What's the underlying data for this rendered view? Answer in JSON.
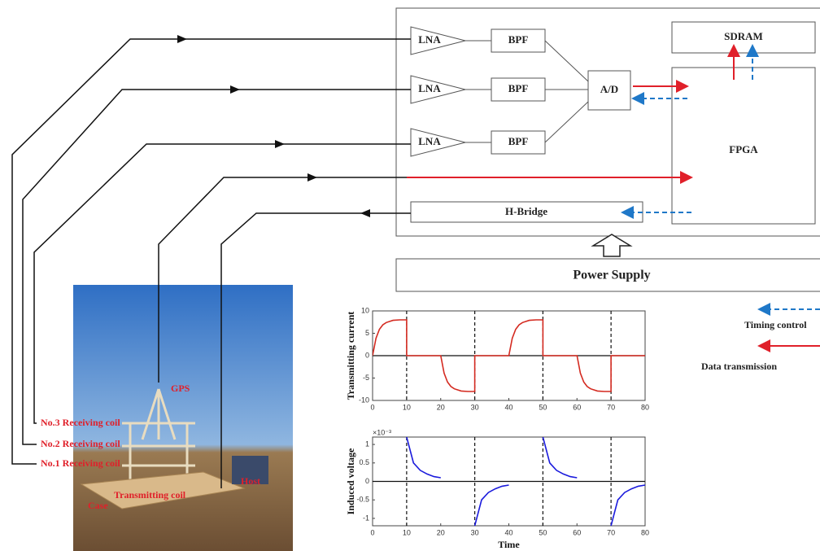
{
  "blocks": {
    "lna": [
      "LNA",
      "LNA",
      "LNA"
    ],
    "bpf": [
      "BPF",
      "BPF",
      "BPF"
    ],
    "adc": "A/D",
    "sdram": "SDRAM",
    "fpga": "FPGA",
    "h_bridge": "H-Bridge",
    "power_supply": "Power Supply"
  },
  "legend": {
    "timing": "Timing control",
    "data": "Data transmission"
  },
  "photo_labels": {
    "gps": "GPS",
    "rx3": "No.3 Receiving coil",
    "rx2": "No.2 Receiving coil",
    "rx1": "No.1 Receiving coil",
    "tx": "Transmitting coil",
    "host": "Host",
    "case": "Case"
  },
  "chart_data": [
    {
      "type": "line",
      "y_label": "Transmitting current",
      "x": [
        0,
        1,
        2,
        3,
        4,
        6,
        8,
        10,
        10,
        20,
        21,
        22,
        23,
        24,
        26,
        28,
        30,
        30,
        40,
        41,
        42,
        43,
        44,
        46,
        48,
        50,
        50,
        60,
        61,
        62,
        63,
        64,
        66,
        68,
        70,
        70,
        80
      ],
      "series": [
        {
          "color": "#d42a20",
          "values": [
            0,
            3.9,
            5.9,
            6.9,
            7.4,
            7.9,
            8,
            8,
            0,
            0,
            -3.9,
            -5.9,
            -6.9,
            -7.4,
            -7.9,
            -8,
            -8,
            0,
            0,
            3.9,
            5.9,
            6.9,
            7.4,
            7.9,
            8,
            8,
            0,
            0,
            -3.9,
            -5.9,
            -6.9,
            -7.4,
            -7.9,
            -8,
            -8,
            0,
            0
          ]
        }
      ],
      "xlim": [
        0,
        80
      ],
      "xticks": [
        0,
        10,
        20,
        30,
        40,
        50,
        60,
        70,
        80
      ],
      "ylim": [
        -10,
        10
      ],
      "yticks": [
        -10,
        -5,
        0,
        5,
        10
      ],
      "vlines": [
        10,
        30,
        50,
        70
      ]
    },
    {
      "type": "line",
      "y_label": "Induced voltage",
      "x_label": "Time",
      "multiplier": "×10⁻³",
      "x": [
        10,
        12,
        14,
        16,
        18,
        20,
        25,
        30,
        32,
        34,
        36,
        38,
        40,
        45,
        50,
        52,
        54,
        56,
        58,
        60,
        65,
        70,
        72,
        74,
        76,
        78,
        80
      ],
      "series": [
        {
          "color": "#1a1adc",
          "values": [
            1.2,
            0.5,
            0.3,
            0.2,
            0.13,
            0.1,
            null,
            -1.2,
            -0.5,
            -0.3,
            -0.2,
            -0.13,
            -0.1,
            null,
            1.2,
            0.5,
            0.3,
            0.2,
            0.13,
            0.1,
            null,
            -1.2,
            -0.5,
            -0.3,
            -0.2,
            -0.13,
            -0.1
          ]
        }
      ],
      "xlim": [
        0,
        80
      ],
      "xticks": [
        0,
        10,
        20,
        30,
        40,
        50,
        60,
        70,
        80
      ],
      "ylim": [
        -1.2,
        1.2
      ],
      "yticks": [
        -1,
        -0.5,
        0,
        0.5,
        1
      ],
      "vlines": [
        10,
        30,
        50,
        70
      ]
    }
  ]
}
